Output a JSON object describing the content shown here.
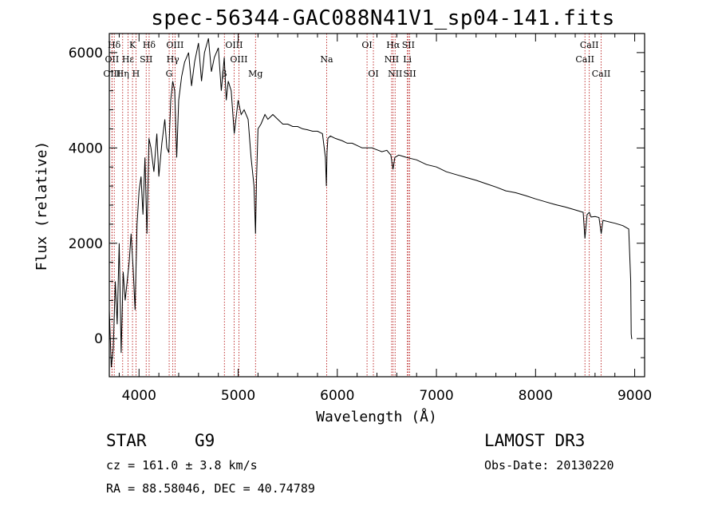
{
  "title": "spec-56344-GAC088N41V1_sp04-141.fits",
  "chart_data": {
    "type": "line",
    "title": "spec-56344-GAC088N41V1_sp04-141.fits",
    "xlabel": "Wavelength (Å)",
    "ylabel": "Flux (relative)",
    "xlim": [
      3700,
      9100
    ],
    "ylim": [
      -800,
      6400
    ],
    "xticks": [
      4000,
      5000,
      6000,
      7000,
      8000,
      9000
    ],
    "yticks": [
      0,
      2000,
      4000,
      6000
    ],
    "line_color": "#000000",
    "marker_color": "#b00000",
    "series": [
      {
        "name": "flux",
        "x": [
          3700,
          3720,
          3740,
          3760,
          3780,
          3800,
          3820,
          3840,
          3860,
          3880,
          3900,
          3920,
          3940,
          3960,
          3980,
          4000,
          4020,
          4040,
          4060,
          4080,
          4100,
          4120,
          4150,
          4180,
          4200,
          4230,
          4260,
          4280,
          4300,
          4320,
          4340,
          4360,
          4380,
          4400,
          4430,
          4460,
          4500,
          4530,
          4560,
          4600,
          4630,
          4660,
          4700,
          4730,
          4760,
          4800,
          4830,
          4860,
          4880,
          4900,
          4930,
          4960,
          5000,
          5030,
          5060,
          5100,
          5130,
          5160,
          5175,
          5185,
          5200,
          5230,
          5270,
          5300,
          5350,
          5400,
          5450,
          5500,
          5550,
          5600,
          5650,
          5700,
          5750,
          5800,
          5850,
          5880,
          5890,
          5896,
          5905,
          5930,
          5980,
          6050,
          6100,
          6150,
          6200,
          6250,
          6300,
          6350,
          6400,
          6450,
          6500,
          6540,
          6562,
          6580,
          6620,
          6700,
          6800,
          6900,
          7000,
          7100,
          7200,
          7300,
          7400,
          7500,
          7600,
          7700,
          7800,
          7900,
          8000,
          8100,
          8200,
          8300,
          8400,
          8480,
          8498,
          8520,
          8542,
          8560,
          8600,
          8640,
          8662,
          8680,
          8720,
          8800,
          8880,
          8940,
          8960,
          8965,
          8970,
          8975
        ],
        "y": [
          600,
          -600,
          -200,
          1200,
          300,
          2000,
          -300,
          1400,
          800,
          1200,
          1600,
          2200,
          1500,
          600,
          2400,
          3100,
          3400,
          2600,
          3800,
          2200,
          4200,
          4000,
          3500,
          4300,
          3400,
          4100,
          4600,
          4000,
          3900,
          5000,
          5400,
          5200,
          3800,
          5000,
          5500,
          5800,
          6000,
          5300,
          5800,
          6200,
          5400,
          6000,
          6300,
          5600,
          5900,
          6100,
          5200,
          5900,
          5000,
          5400,
          5200,
          4300,
          5000,
          4700,
          4800,
          4600,
          3800,
          3200,
          2200,
          3300,
          4400,
          4500,
          4700,
          4600,
          4700,
          4600,
          4500,
          4500,
          4450,
          4450,
          4400,
          4380,
          4350,
          4350,
          4300,
          3800,
          3200,
          3900,
          4200,
          4250,
          4200,
          4150,
          4100,
          4100,
          4050,
          4000,
          4000,
          4000,
          3960,
          3920,
          3950,
          3850,
          3550,
          3800,
          3850,
          3800,
          3750,
          3650,
          3600,
          3500,
          3440,
          3380,
          3320,
          3250,
          3180,
          3100,
          3060,
          3000,
          2930,
          2870,
          2810,
          2760,
          2700,
          2650,
          2100,
          2600,
          2650,
          2550,
          2560,
          2540,
          2200,
          2480,
          2460,
          2420,
          2370,
          2300,
          1200,
          100,
          0,
          0
        ]
      }
    ],
    "lines": [
      {
        "label": "Hδ",
        "wavelength": 3750,
        "row": 1
      },
      {
        "label": "OII",
        "wavelength": 3727,
        "row": 2
      },
      {
        "label": "OIII",
        "wavelength": 3727,
        "row": 3
      },
      {
        "label": "Hε",
        "wavelength": 3889,
        "row": 2
      },
      {
        "label": "Hη",
        "wavelength": 3835,
        "row": 3
      },
      {
        "label": "K",
        "wavelength": 3934,
        "row": 1
      },
      {
        "label": "SII",
        "wavelength": 4072,
        "row": 2
      },
      {
        "label": "H",
        "wavelength": 3969,
        "row": 3
      },
      {
        "label": "Hδ",
        "wavelength": 4102,
        "row": 1
      },
      {
        "label": "OIII",
        "wavelength": 4363,
        "row": 1
      },
      {
        "label": "Hγ",
        "wavelength": 4341,
        "row": 2
      },
      {
        "label": "G",
        "wavelength": 4304,
        "row": 3
      },
      {
        "label": "OIII",
        "wavelength": 4959,
        "row": 1
      },
      {
        "label": "OIII",
        "wavelength": 5007,
        "row": 2
      },
      {
        "label": "β",
        "wavelength": 4861,
        "row": 3
      },
      {
        "label": "Mg",
        "wavelength": 5175,
        "row": 3
      },
      {
        "label": "Na",
        "wavelength": 5893,
        "row": 2
      },
      {
        "label": "OI",
        "wavelength": 6300,
        "row": 1
      },
      {
        "label": "OI",
        "wavelength": 6364,
        "row": 3
      },
      {
        "label": "Hα",
        "wavelength": 6563,
        "row": 1
      },
      {
        "label": "NII",
        "wavelength": 6548,
        "row": 2
      },
      {
        "label": "NII",
        "wavelength": 6583,
        "row": 3
      },
      {
        "label": "SII",
        "wavelength": 6717,
        "row": 1
      },
      {
        "label": "Li",
        "wavelength": 6707,
        "row": 2
      },
      {
        "label": "SII",
        "wavelength": 6731,
        "row": 3
      },
      {
        "label": "CaII",
        "wavelength": 8542,
        "row": 1
      },
      {
        "label": "CaII",
        "wavelength": 8498,
        "row": 2
      },
      {
        "label": "CaII",
        "wavelength": 8662,
        "row": 3
      }
    ]
  },
  "footer": {
    "class": "STAR",
    "subclass": "G9",
    "velocity": "cz = 161.0 ± 3.8 km/s",
    "coords": "RA =  88.58046, DEC =  40.74789",
    "survey": "LAMOST DR3",
    "obsdate": "Obs-Date: 20130220"
  }
}
